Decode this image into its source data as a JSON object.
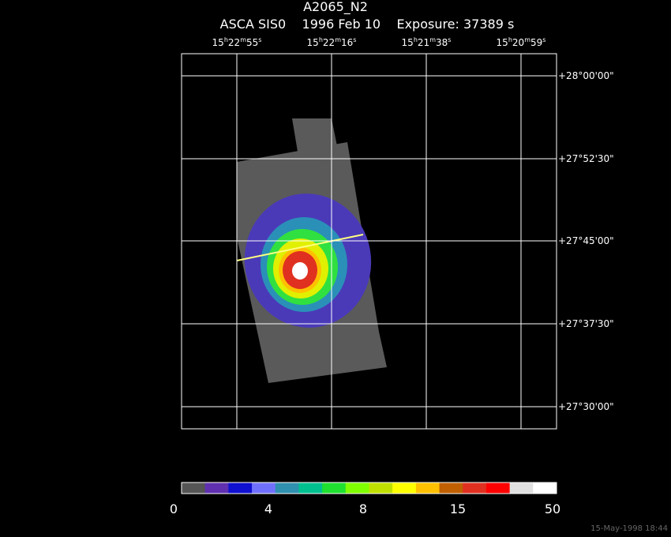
{
  "header": {
    "title": "A2065_N2",
    "subtitle": "ASCA SIS0    1996 Feb 10    Exposure: 37389 s"
  },
  "ra_labels": [
    [
      {
        "text": "15"
      },
      {
        "text": "h",
        "sup": true
      },
      {
        "text": "22"
      },
      {
        "text": "m",
        "sup": true
      },
      {
        "text": "55"
      },
      {
        "text": "s",
        "sup": true
      }
    ],
    [
      {
        "text": "15"
      },
      {
        "text": "h",
        "sup": true
      },
      {
        "text": "22"
      },
      {
        "text": "m",
        "sup": true
      },
      {
        "text": "16"
      },
      {
        "text": "s",
        "sup": true
      }
    ],
    [
      {
        "text": "15"
      },
      {
        "text": "h",
        "sup": true
      },
      {
        "text": "21"
      },
      {
        "text": "m",
        "sup": true
      },
      {
        "text": "38"
      },
      {
        "text": "s",
        "sup": true
      }
    ],
    [
      {
        "text": "15"
      },
      {
        "text": "h",
        "sup": true
      },
      {
        "text": "20"
      },
      {
        "text": "m",
        "sup": true
      },
      {
        "text": "59"
      },
      {
        "text": "s",
        "sup": true
      }
    ]
  ],
  "dec_labels": [
    "+28°00'00\"",
    "+27°52'30\"",
    "+27°45'00\"",
    "+27°37'30\"",
    "+27°30'00\""
  ],
  "colorbar": {
    "colors": [
      "#555555",
      "#6030b0",
      "#1010d0",
      "#7070ff",
      "#3090b0",
      "#00c090",
      "#20e030",
      "#80ff00",
      "#c0e000",
      "#ffff00",
      "#ffc000",
      "#c06000",
      "#e03020",
      "#ff0000",
      "#e0e0e0",
      "#ffffff"
    ],
    "labels": [
      0,
      4,
      8,
      15,
      50
    ]
  },
  "footer": "15-May-1998 18:44"
}
